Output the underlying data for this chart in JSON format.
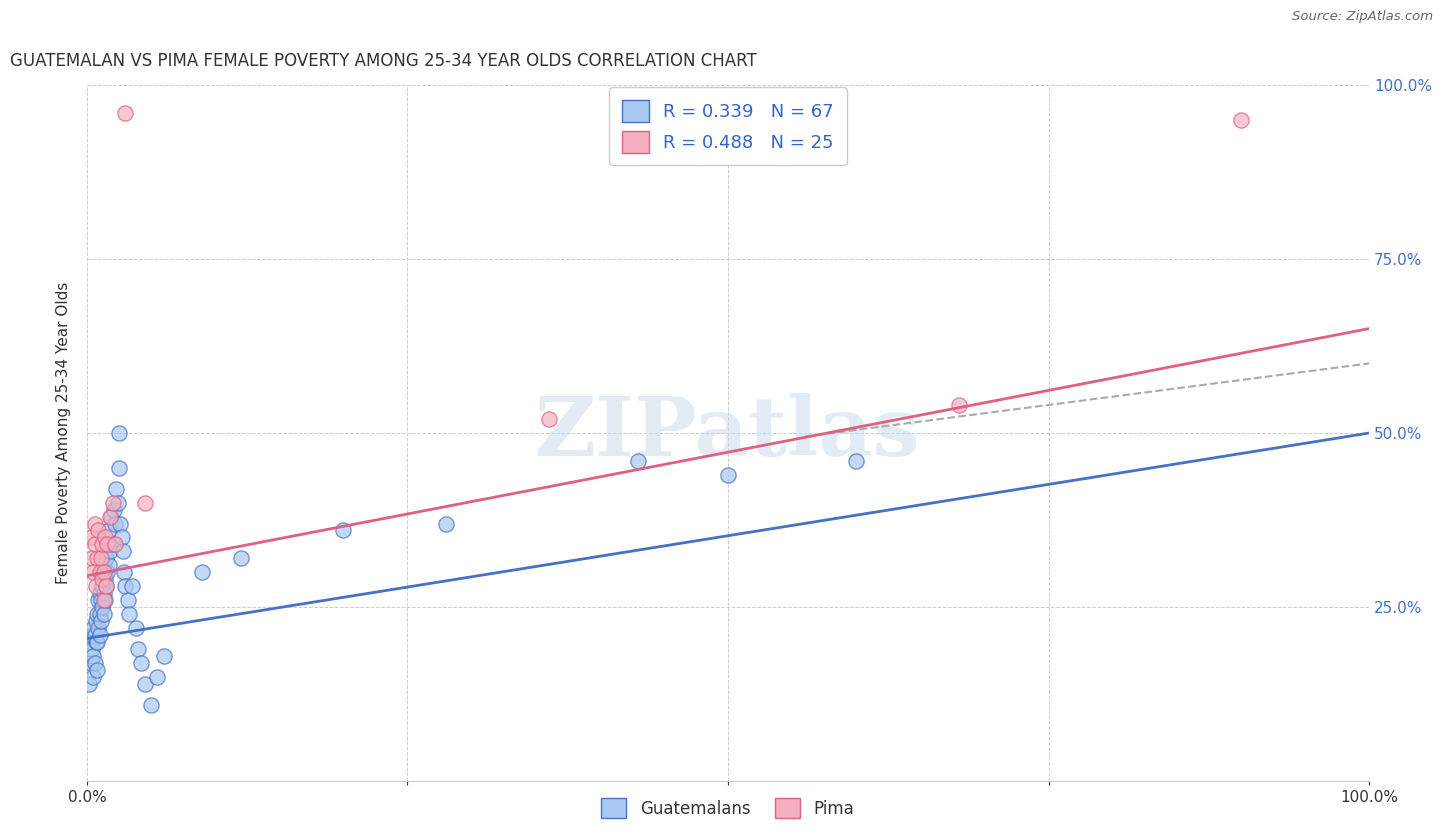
{
  "title": "GUATEMALAN VS PIMA FEMALE POVERTY AMONG 25-34 YEAR OLDS CORRELATION CHART",
  "source": "Source: ZipAtlas.com",
  "ylabel": "Female Poverty Among 25-34 Year Olds",
  "xlim": [
    0,
    1.0
  ],
  "ylim": [
    0,
    1.0
  ],
  "guatemalan_color": "#A8C8F0",
  "pima_color": "#F4B0C0",
  "guatemalan_line_color": "#4472C4",
  "pima_line_color": "#E06080",
  "dash_color": "#AAAAAA",
  "right_tick_color": "#4472C4",
  "legend_R_guatemalan": "0.339",
  "legend_N_guatemalan": "67",
  "legend_R_pima": "0.488",
  "legend_N_pima": "25",
  "legend_label_guatemalan": "Guatemalans",
  "legend_label_pima": "Pima",
  "watermark": "ZIPatlas",
  "blue_line_y0": 0.205,
  "blue_line_y1": 0.5,
  "pink_line_y0": 0.295,
  "pink_line_y1": 0.65,
  "dash_line_x0": 0.56,
  "dash_line_x1": 1.0,
  "dash_line_y0": 0.495,
  "dash_line_y1": 0.6,
  "gx": [
    0.002,
    0.003,
    0.003,
    0.004,
    0.004,
    0.005,
    0.005,
    0.005,
    0.006,
    0.006,
    0.007,
    0.007,
    0.008,
    0.008,
    0.008,
    0.009,
    0.009,
    0.01,
    0.01,
    0.01,
    0.011,
    0.011,
    0.011,
    0.012,
    0.012,
    0.013,
    0.013,
    0.013,
    0.014,
    0.014,
    0.015,
    0.015,
    0.016,
    0.016,
    0.017,
    0.017,
    0.018,
    0.019,
    0.02,
    0.021,
    0.022,
    0.023,
    0.024,
    0.025,
    0.025,
    0.026,
    0.027,
    0.028,
    0.029,
    0.03,
    0.032,
    0.033,
    0.035,
    0.038,
    0.04,
    0.042,
    0.045,
    0.05,
    0.055,
    0.06,
    0.09,
    0.12,
    0.2,
    0.28,
    0.43,
    0.5,
    0.6
  ],
  "gy": [
    0.14,
    0.17,
    0.2,
    0.19,
    0.21,
    0.15,
    0.18,
    0.22,
    0.17,
    0.21,
    0.2,
    0.23,
    0.16,
    0.2,
    0.24,
    0.22,
    0.26,
    0.21,
    0.24,
    0.27,
    0.23,
    0.26,
    0.3,
    0.25,
    0.28,
    0.24,
    0.27,
    0.31,
    0.26,
    0.29,
    0.28,
    0.32,
    0.3,
    0.34,
    0.31,
    0.36,
    0.33,
    0.38,
    0.34,
    0.39,
    0.37,
    0.42,
    0.4,
    0.45,
    0.5,
    0.37,
    0.35,
    0.33,
    0.3,
    0.28,
    0.26,
    0.24,
    0.28,
    0.22,
    0.19,
    0.17,
    0.14,
    0.11,
    0.15,
    0.18,
    0.3,
    0.32,
    0.36,
    0.37,
    0.46,
    0.44,
    0.46
  ],
  "px": [
    0.003,
    0.004,
    0.005,
    0.006,
    0.006,
    0.007,
    0.008,
    0.009,
    0.01,
    0.011,
    0.012,
    0.012,
    0.013,
    0.013,
    0.014,
    0.015,
    0.016,
    0.018,
    0.02,
    0.022,
    0.03,
    0.045,
    0.36,
    0.68,
    0.9
  ],
  "py": [
    0.35,
    0.32,
    0.3,
    0.34,
    0.37,
    0.28,
    0.32,
    0.36,
    0.3,
    0.32,
    0.29,
    0.34,
    0.26,
    0.3,
    0.35,
    0.28,
    0.34,
    0.38,
    0.4,
    0.34,
    0.96,
    0.4,
    0.52,
    0.54,
    0.95
  ]
}
